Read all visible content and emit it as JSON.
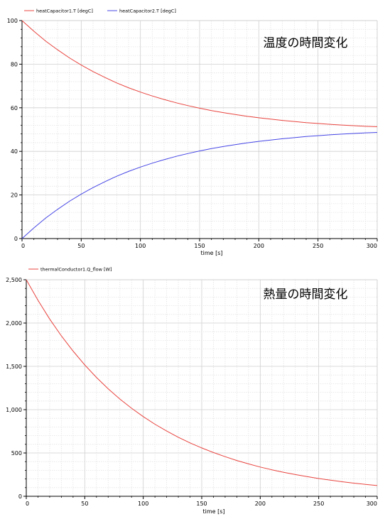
{
  "chart_data": [
    {
      "type": "line",
      "title": "",
      "annotation": "温度の時間変化",
      "xlabel": "time [s]",
      "ylabel": "",
      "xlim": [
        0,
        300
      ],
      "ylim": [
        0,
        100
      ],
      "xticks": [
        "0",
        "50",
        "100",
        "150",
        "200",
        "250",
        "300"
      ],
      "yticks": [
        "0",
        "20",
        "40",
        "60",
        "80",
        "100"
      ],
      "grid": true,
      "legend_position": "top-left",
      "x": [
        0,
        10,
        20,
        30,
        40,
        50,
        60,
        70,
        80,
        90,
        100,
        110,
        120,
        130,
        140,
        150,
        160,
        170,
        180,
        190,
        200,
        210,
        220,
        230,
        240,
        250,
        260,
        270,
        280,
        290,
        300
      ],
      "series": [
        {
          "name": "heatCapacitor1.T [degC]",
          "color": "#e8443f",
          "values": [
            100.0,
            95.1,
            90.6,
            86.6,
            82.9,
            79.6,
            76.6,
            73.9,
            71.4,
            69.2,
            67.2,
            65.4,
            63.8,
            62.3,
            61.0,
            59.8,
            58.7,
            57.8,
            56.9,
            56.1,
            55.4,
            54.8,
            54.2,
            53.7,
            53.2,
            52.8,
            52.4,
            52.1,
            51.8,
            51.5,
            51.3
          ]
        },
        {
          "name": "heatCapacitor2.T [degC]",
          "color": "#4545e6",
          "values": [
            0.0,
            4.9,
            9.4,
            13.4,
            17.1,
            20.4,
            23.4,
            26.1,
            28.6,
            30.8,
            32.8,
            34.6,
            36.2,
            37.7,
            39.0,
            40.2,
            41.3,
            42.2,
            43.1,
            43.9,
            44.6,
            45.2,
            45.8,
            46.3,
            46.8,
            47.2,
            47.6,
            47.9,
            48.2,
            48.5,
            48.7
          ]
        }
      ]
    },
    {
      "type": "line",
      "title": "",
      "annotation": "熱量の時間変化",
      "xlabel": "time [s]",
      "ylabel": "",
      "xlim": [
        0,
        300
      ],
      "ylim": [
        0,
        2500
      ],
      "xticks": [
        "0",
        "50",
        "100",
        "150",
        "200",
        "250",
        "300"
      ],
      "yticks": [
        "0",
        "500",
        "1,000",
        "1,500",
        "2,000",
        "2,500"
      ],
      "grid": true,
      "legend_position": "top-left",
      "x": [
        0,
        10,
        20,
        30,
        40,
        50,
        60,
        70,
        80,
        90,
        100,
        110,
        120,
        130,
        140,
        150,
        160,
        170,
        180,
        190,
        200,
        210,
        220,
        230,
        240,
        250,
        260,
        270,
        280,
        290,
        300
      ],
      "series": [
        {
          "name": "thermalConductor1.Q_flow [W]",
          "color": "#e8443f",
          "values": [
            2500,
            2262,
            2047,
            1852,
            1676,
            1516,
            1372,
            1241,
            1123,
            1016,
            920,
            832,
            753,
            681,
            616,
            558,
            505,
            457,
            413,
            374,
            338,
            306,
            277,
            251,
            227,
            205,
            186,
            168,
            152,
            138,
            124
          ]
        }
      ]
    }
  ]
}
